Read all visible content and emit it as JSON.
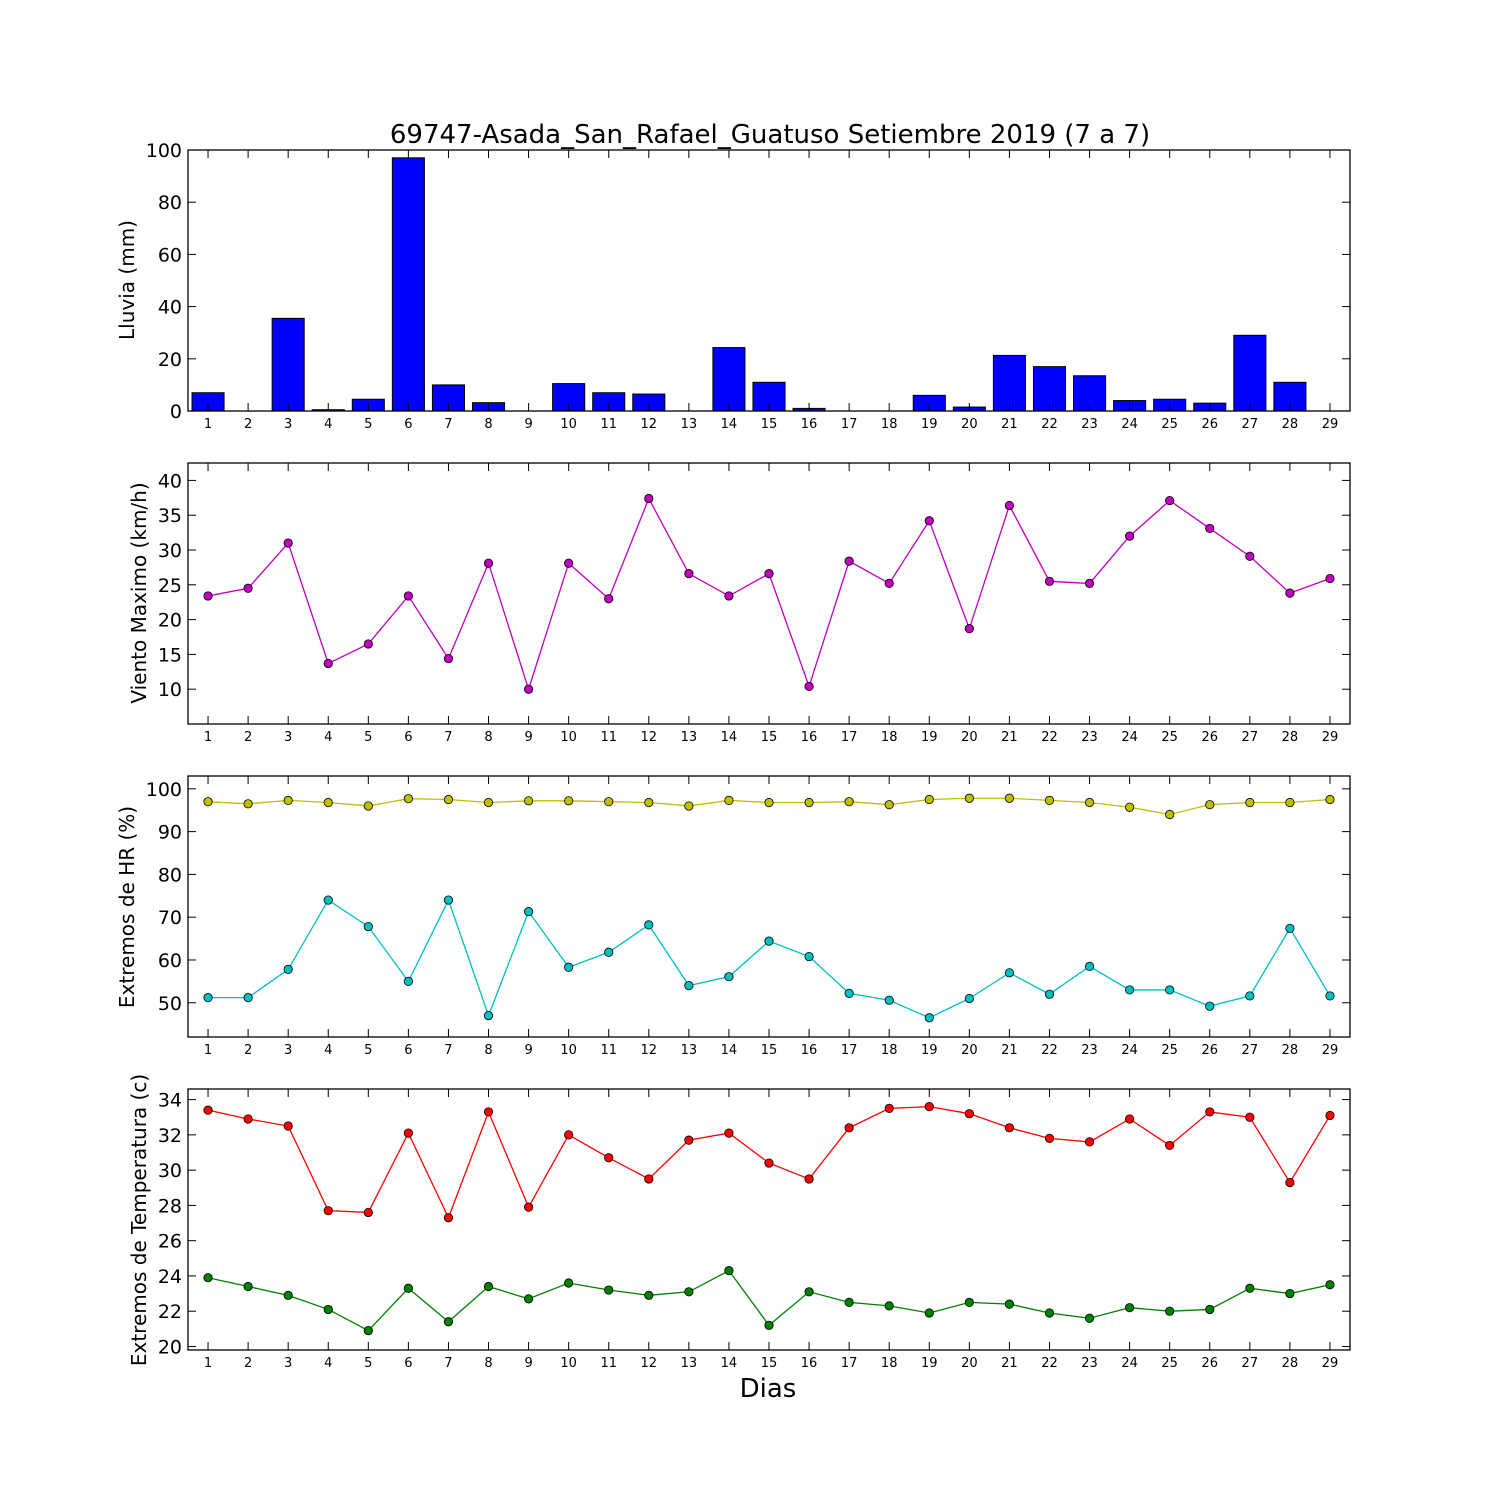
{
  "title": "69747-Asada_San_Rafael_Guatuso Setiembre 2019  (7 a 7)",
  "xlabel": "Dias",
  "colors": {
    "rain": "#0000ff",
    "wind": "#bf00bf",
    "hr_max": "#bfbf00",
    "hr_min": "#00bfbf",
    "temp_max": "#ff0000",
    "temp_min": "#008000"
  },
  "chart_data": [
    {
      "type": "bar",
      "ylabel": "Lluvia (mm)",
      "ylim": [
        0,
        100
      ],
      "yticks": [
        0,
        20,
        40,
        60,
        80,
        100
      ],
      "categories": [
        "1",
        "2",
        "3",
        "4",
        "5",
        "6",
        "7",
        "8",
        "9",
        "10",
        "11",
        "12",
        "13",
        "14",
        "15",
        "16",
        "17",
        "18",
        "19",
        "20",
        "21",
        "22",
        "23",
        "24",
        "25",
        "26",
        "27",
        "28",
        "29"
      ],
      "values": [
        7,
        0,
        35.5,
        0.5,
        4.5,
        97,
        10,
        3.2,
        0,
        10.5,
        7,
        6.5,
        0,
        24.3,
        11,
        1,
        0,
        0,
        6,
        1.5,
        21.3,
        17,
        13.5,
        4,
        4.5,
        3,
        29,
        11,
        0
      ]
    },
    {
      "type": "line",
      "ylabel": "Viento Maximo (km/h)",
      "ylim": [
        5,
        42.5
      ],
      "yticks": [
        10,
        15,
        20,
        25,
        30,
        35,
        40
      ],
      "x": [
        1,
        2,
        3,
        4,
        5,
        6,
        7,
        8,
        9,
        10,
        11,
        12,
        13,
        14,
        15,
        16,
        17,
        18,
        19,
        20,
        21,
        22,
        23,
        24,
        25,
        26,
        27,
        28,
        29
      ],
      "series": [
        {
          "values": [
            23.4,
            24.5,
            31,
            13.7,
            16.5,
            23.4,
            14.4,
            28.1,
            10,
            28.1,
            23,
            37.4,
            26.6,
            23.4,
            26.6,
            10.4,
            28.4,
            25.2,
            34.2,
            18.7,
            36.4,
            25.5,
            25.2,
            32,
            37.1,
            33.1,
            29.1,
            23.8,
            25.9
          ]
        }
      ]
    },
    {
      "type": "line",
      "ylabel": "Extremos de HR (%)",
      "ylim": [
        42,
        103
      ],
      "yticks": [
        50,
        60,
        70,
        80,
        90,
        100
      ],
      "x": [
        1,
        2,
        3,
        4,
        5,
        6,
        7,
        8,
        9,
        10,
        11,
        12,
        13,
        14,
        15,
        16,
        17,
        18,
        19,
        20,
        21,
        22,
        23,
        24,
        25,
        26,
        27,
        28,
        29
      ],
      "series": [
        {
          "values": [
            97,
            96.5,
            97.3,
            96.8,
            96,
            97.7,
            97.5,
            96.8,
            97.2,
            97.2,
            97,
            96.8,
            96,
            97.3,
            96.8,
            96.8,
            97,
            96.3,
            97.5,
            97.8,
            97.8,
            97.3,
            96.8,
            95.7,
            94,
            96.3,
            96.8,
            96.8,
            97.5
          ]
        },
        {
          "values": [
            51.2,
            51.2,
            57.8,
            74,
            67.8,
            55,
            74,
            47,
            71.3,
            58.3,
            61.8,
            68.2,
            54,
            56.1,
            64.4,
            60.8,
            52.2,
            50.6,
            46.5,
            51,
            57,
            52,
            58.5,
            53,
            53,
            49.2,
            51.6,
            67.4,
            51.6
          ]
        }
      ]
    },
    {
      "type": "line",
      "ylabel": "Extremos de Temperatura (c)",
      "ylim": [
        19.8,
        34.6
      ],
      "yticks": [
        20,
        22,
        24,
        26,
        28,
        30,
        32,
        34
      ],
      "x": [
        1,
        2,
        3,
        4,
        5,
        6,
        7,
        8,
        9,
        10,
        11,
        12,
        13,
        14,
        15,
        16,
        17,
        18,
        19,
        20,
        21,
        22,
        23,
        24,
        25,
        26,
        27,
        28,
        29
      ],
      "series": [
        {
          "values": [
            33.4,
            32.9,
            32.5,
            27.7,
            27.6,
            32.1,
            27.3,
            33.3,
            27.9,
            32,
            30.7,
            29.5,
            31.7,
            32.1,
            30.4,
            29.5,
            32.4,
            33.5,
            33.6,
            33.2,
            32.4,
            31.8,
            31.6,
            32.9,
            31.4,
            33.3,
            33,
            29.3,
            33.1
          ]
        },
        {
          "values": [
            23.9,
            23.4,
            22.9,
            22.1,
            20.9,
            23.3,
            21.4,
            23.4,
            22.7,
            23.6,
            23.2,
            22.9,
            23.1,
            24.3,
            21.2,
            23.1,
            22.5,
            22.3,
            21.9,
            22.5,
            22.4,
            21.9,
            21.6,
            22.2,
            22,
            22.1,
            23.3,
            23,
            23.5
          ]
        }
      ]
    }
  ]
}
